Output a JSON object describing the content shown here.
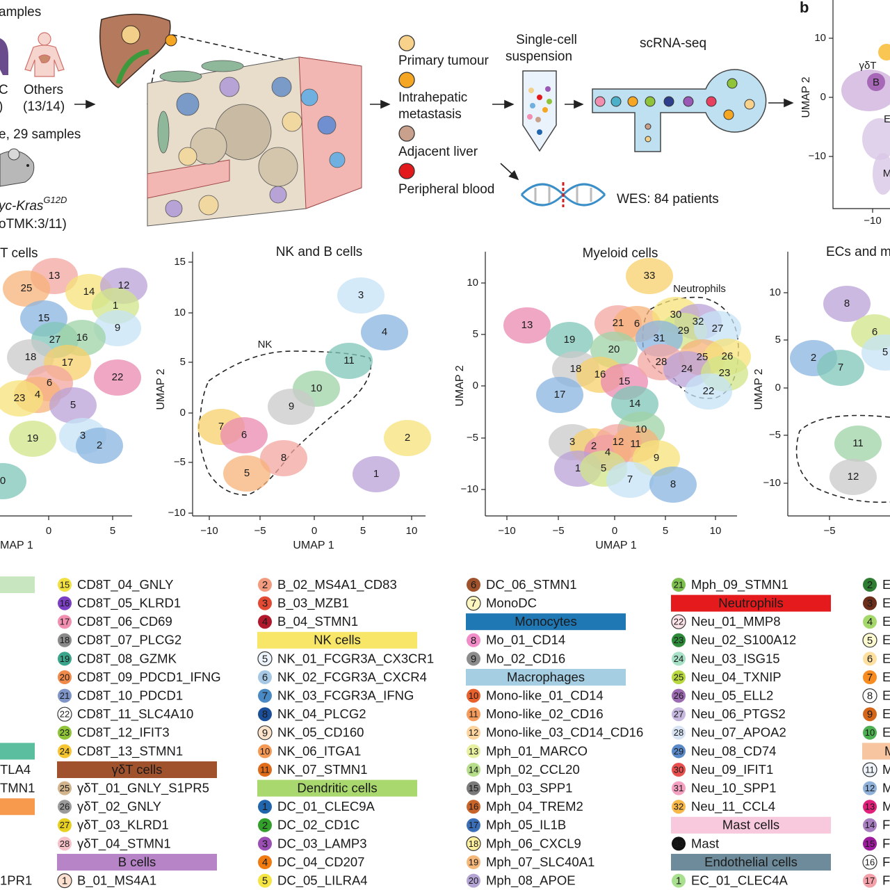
{
  "panel_a": {
    "human_header": "amples",
    "human_1_label": "C",
    "human_1_count": ")",
    "human_2_label": "Others",
    "human_2_count": "(13/14)",
    "mouse_header": "e, 29 samples",
    "mouse_model": "yc-Kras",
    "mouse_model_sup": "G12D",
    "mouse_count": "oTMK:3/11)",
    "sample_types": [
      {
        "lines": [
          "Primary tumour"
        ],
        "color": "#f8d18a"
      },
      {
        "lines": [
          "Intrahepatic",
          "metastasis"
        ],
        "color": "#f5a623"
      },
      {
        "lines": [
          "Adjacent liver"
        ],
        "color": "#c9a08c"
      },
      {
        "lines": [
          "Peripheral blood"
        ],
        "color": "#e31a1c"
      }
    ],
    "suspension": [
      "Single-cell",
      "suspension"
    ],
    "scrna": "scRNA-seq",
    "wes": "WES: 84 patients"
  },
  "panel_b": {
    "letter": "b",
    "y_label": "UMAP 2",
    "yticks": [
      "10",
      "0",
      "−10"
    ],
    "xticks": [
      "−10"
    ],
    "clusters": [
      "γδT",
      "B",
      "E",
      "M"
    ]
  },
  "umaps": [
    {
      "title": "T cells",
      "x_label": "MAP 1",
      "xticks": [
        "0",
        "5"
      ],
      "clusters": [
        "13",
        "25",
        "14",
        "12",
        "1",
        "9",
        "15",
        "27",
        "16",
        "18",
        "17",
        "22",
        "6",
        "4",
        "23",
        "5",
        "19",
        "3",
        "2",
        "0"
      ]
    },
    {
      "title": "NK and B cells",
      "x_label": "UMAP 1",
      "y_label": "UMAP 2",
      "xticks": [
        "−10",
        "−5",
        "0",
        "5",
        "10"
      ],
      "yticks": [
        "15",
        "10",
        "5",
        "0",
        "−5",
        "−10"
      ],
      "clusters": [
        "3",
        "4",
        "11",
        "10",
        "9",
        "7",
        "6",
        "8",
        "5",
        "2",
        "1"
      ],
      "annotations": [
        "NK"
      ]
    },
    {
      "title": "Myeloid cells",
      "x_label": "UMAP 1",
      "y_label": "UMAP 2",
      "xticks": [
        "−10",
        "−5",
        "0",
        "5",
        "10"
      ],
      "yticks": [
        "10",
        "5",
        "0",
        "−5",
        "−10"
      ],
      "clusters": [
        "33",
        "13",
        "21",
        "6",
        "30",
        "32",
        "29",
        "27",
        "31",
        "19",
        "20",
        "18",
        "16",
        "15",
        "28",
        "25",
        "26",
        "24",
        "23",
        "22",
        "17",
        "14",
        "10",
        "3",
        "2",
        "4",
        "12",
        "11",
        "9",
        "1",
        "5",
        "7",
        "8"
      ],
      "annotations": [
        "Neutrophils"
      ]
    },
    {
      "title": "ECs and m",
      "y_label": "UMAP 2",
      "xticks": [
        "−5"
      ],
      "yticks": [
        "10",
        "5",
        "0",
        "−5",
        "−10"
      ],
      "clusters": [
        "8",
        "6",
        "5",
        "2",
        "7",
        "11",
        "12"
      ]
    }
  ],
  "legend": {
    "columns": [
      [
        {
          "color": "#c8e6c0"
        },
        null,
        null,
        null,
        null,
        null,
        null,
        null,
        null,
        {
          "color": "#5bbf9f"
        },
        {
          "label": "TLA4"
        },
        {
          "label": "TMN1"
        },
        {
          "color": "#f79a4d"
        },
        null,
        null,
        null,
        {
          "label": "1PR1"
        }
      ],
      [
        {
          "number": "15",
          "label": "CD8T_04_GNLY",
          "color": "#f0e040"
        },
        {
          "number": "16",
          "label": "CD8T_05_KLRD1",
          "color": "#7b3fc4"
        },
        {
          "number": "17",
          "label": "CD8T_06_CD69",
          "color": "#f28fb0"
        },
        {
          "number": "18",
          "label": "CD8T_07_PLCG2",
          "color": "#8a8a8a"
        },
        {
          "number": "19",
          "label": "CD8T_08_GZMK",
          "color": "#3aa58a"
        },
        {
          "number": "20",
          "label": "CD8T_09_PDCD1_IFNG",
          "color": "#f08a4a"
        },
        {
          "number": "21",
          "label": "CD8T_10_PDCD1",
          "color": "#7f95c8"
        },
        {
          "number": "22",
          "label": "CD8T_11_SLC4A10",
          "color": "#ffffff"
        },
        {
          "number": "23",
          "label": "CD8T_12_IFIT3",
          "color": "#8fc43a"
        },
        {
          "number": "24",
          "label": "CD8T_13_STMN1",
          "color": "#f6c531"
        },
        {
          "header": "γδT cells",
          "color": "#a0522d"
        },
        {
          "number": "25",
          "label": "γδT_01_GNLY_S1PR5",
          "color": "#d2b48c"
        },
        {
          "number": "26",
          "label": "γδT_02_GNLY",
          "color": "#9a9a9a"
        },
        {
          "number": "27",
          "label": "γδT_03_KLRD1",
          "color": "#e8d020"
        },
        {
          "number": "28",
          "label": "γδT_04_STMN1",
          "color": "#f5c0c8"
        },
        {
          "header": "B cells",
          "color": "#b784c7"
        },
        {
          "number": "1",
          "label": "B_01_MS4A1",
          "color": "#fde0d0"
        }
      ],
      [
        {
          "number": "2",
          "label": "B_02_MS4A1_CD83",
          "color": "#f39b7f"
        },
        {
          "number": "3",
          "label": "B_03_MZB1",
          "color": "#e34a33"
        },
        {
          "number": "4",
          "label": "B_04_STMN1",
          "color": "#b2182b"
        },
        {
          "header": "NK cells",
          "color": "#f7e668"
        },
        {
          "number": "5",
          "label": "NK_01_FCGR3A_CX3CR1",
          "color": "#eef4fb"
        },
        {
          "number": "6",
          "label": "NK_02_FCGR3A_CXCR4",
          "color": "#a6c8e4"
        },
        {
          "number": "7",
          "label": "NK_03_FCGR3A_IFNG",
          "color": "#4a8ac4"
        },
        {
          "number": "8",
          "label": "NK_04_PLCG2",
          "color": "#1c4f9a"
        },
        {
          "number": "9",
          "label": "NK_05_CD160",
          "color": "#fce3cc"
        },
        {
          "number": "10",
          "label": "NK_06_ITGA1",
          "color": "#f59a55"
        },
        {
          "number": "11",
          "label": "NK_07_STMN1",
          "color": "#e06c1a"
        },
        {
          "header": "Dendritic cells",
          "color": "#a9d86e"
        },
        {
          "number": "1",
          "label": "DC_01_CLEC9A",
          "color": "#2166ac"
        },
        {
          "number": "2",
          "label": "DC_02_CD1C",
          "color": "#33a02c"
        },
        {
          "number": "3",
          "label": "DC_03_LAMP3",
          "color": "#9b4fb4"
        },
        {
          "number": "4",
          "label": "DC_04_CD207",
          "color": "#f07b10"
        },
        {
          "number": "5",
          "label": "DC_05_LILRA4",
          "color": "#f4e542"
        }
      ],
      [
        {
          "number": "6",
          "label": "DC_06_STMN1",
          "color": "#a0522d"
        },
        {
          "number": "7",
          "label": "MonoDC",
          "color": "#fff7c0"
        },
        {
          "header": "Monocytes",
          "color": "#1f77b4"
        },
        {
          "number": "8",
          "label": "Mo_01_CD14",
          "color": "#f28cc8"
        },
        {
          "number": "9",
          "label": "Mo_02_CD16",
          "color": "#8c8c8c"
        },
        {
          "header": "Macrophages",
          "color": "#a6cee3"
        },
        {
          "number": "10",
          "label": "Mono-like_01_CD14",
          "color": "#e8602c"
        },
        {
          "number": "11",
          "label": "Mono-like_02_CD16",
          "color": "#f59c5c"
        },
        {
          "number": "12",
          "label": "Mono-like_03_CD14_CD16",
          "color": "#fdd49e"
        },
        {
          "number": "13",
          "label": "Mph_01_MARCO",
          "color": "#e6f0a0"
        },
        {
          "number": "14",
          "label": "Mph_02_CCL20",
          "color": "#b5dd8a"
        },
        {
          "number": "15",
          "label": "Mph_03_SPP1",
          "color": "#7a7a7a"
        },
        {
          "number": "16",
          "label": "Mph_04_TREM2",
          "color": "#c8642a"
        },
        {
          "number": "17",
          "label": "Mph_05_IL1B",
          "color": "#3a6fb8"
        },
        {
          "number": "18",
          "label": "Mph_06_CXCL9",
          "color": "#fdf1a0"
        },
        {
          "number": "19",
          "label": "Mph_07_SLC40A1",
          "color": "#f5b87a"
        },
        {
          "number": "20",
          "label": "Mph_08_APOE",
          "color": "#b3a4d4"
        }
      ],
      [
        {
          "number": "21",
          "label": "Mph_09_STMN1",
          "color": "#7dc050"
        },
        {
          "header": "Neutrophils",
          "color": "#e41a1c"
        },
        {
          "number": "22",
          "label": "Neu_01_MMP8",
          "color": "#fde4ea"
        },
        {
          "number": "23",
          "label": "Neu_02_S100A12",
          "color": "#2e8b3a"
        },
        {
          "number": "24",
          "label": "Neu_03_ISG15",
          "color": "#a8e0c8"
        },
        {
          "number": "25",
          "label": "Neu_04_TXNIP",
          "color": "#b8d840"
        },
        {
          "number": "26",
          "label": "Neu_05_ELL2",
          "color": "#9c6ab0"
        },
        {
          "number": "27",
          "label": "Neu_06_PTGS2",
          "color": "#c7b8e0"
        },
        {
          "number": "28",
          "label": "Neu_07_APOA2",
          "color": "#d8e4f4"
        },
        {
          "number": "29",
          "label": "Neu_08_CD74",
          "color": "#5a8ac8"
        },
        {
          "number": "30",
          "label": "Neu_09_IFIT1",
          "color": "#e85050"
        },
        {
          "number": "31",
          "label": "Neu_10_SPP1",
          "color": "#f4a0c0"
        },
        {
          "number": "32",
          "label": "Neu_11_CCL4",
          "color": "#f8b84a"
        },
        {
          "header": "Mast cells",
          "color": "#f8c8dc"
        },
        {
          "number": "33",
          "label": "Mast",
          "color": "#111111"
        },
        {
          "header": "Endothelial cells",
          "color": "#6d8b9a"
        },
        {
          "number": "1",
          "label": "EC_01_CLEC4A",
          "color": "#a8e090"
        }
      ],
      [
        {
          "number": "2",
          "label": "E",
          "color": "#2e7d32"
        },
        {
          "number": "3",
          "label": "E",
          "color": "#6b2e1a"
        },
        {
          "number": "4",
          "label": "E",
          "color": "#a5d86a"
        },
        {
          "number": "5",
          "label": "E",
          "color": "#fffbd0"
        },
        {
          "number": "6",
          "label": "E",
          "color": "#fde0a0"
        },
        {
          "number": "7",
          "label": "E",
          "color": "#f78c20"
        },
        {
          "number": "8",
          "label": "E",
          "color": "#ffffff"
        },
        {
          "number": "9",
          "label": "E",
          "color": "#d4661a"
        },
        {
          "number": "10",
          "label": "E",
          "color": "#4caf50"
        },
        {
          "header": "M",
          "color": "#f7c6a0"
        },
        {
          "number": "11",
          "label": "M",
          "color": "#eef4fa"
        },
        {
          "number": "12",
          "label": "M",
          "color": "#8fb0d8"
        },
        {
          "number": "13",
          "label": "M",
          "color": "#e0207a"
        },
        {
          "number": "14",
          "label": "F",
          "color": "#a77fc0"
        },
        {
          "number": "15",
          "label": "F",
          "color": "#9c1a9c"
        },
        {
          "number": "16",
          "label": "F",
          "color": "#ffffff"
        },
        {
          "number": "17",
          "label": "F",
          "color": "#f4a0a8"
        }
      ]
    ]
  }
}
